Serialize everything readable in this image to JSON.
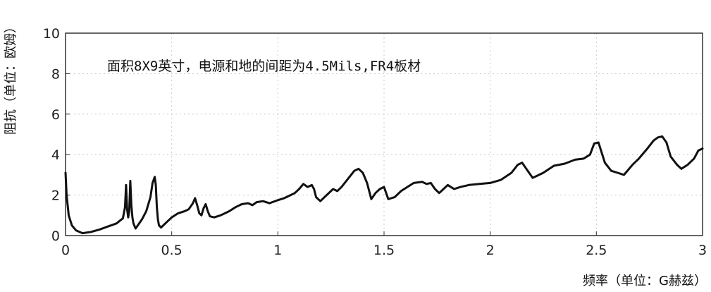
{
  "chart_data": {
    "type": "line",
    "title": "",
    "annotation": "面积8X9英寸，电源和地的间距为4.5Mils,FR4板材",
    "xlabel": "频率（单位：G赫兹）",
    "ylabel": "阻抗（单位：欧姆）",
    "xlim": [
      0,
      3
    ],
    "ylim": [
      0,
      10
    ],
    "x_ticks": [
      "0",
      "0.5",
      "1",
      "1.5",
      "2",
      "2.5",
      "3"
    ],
    "y_ticks": [
      "0",
      "2",
      "4",
      "6",
      "8",
      "10"
    ],
    "grid": true,
    "series": [
      {
        "x": [
          0,
          0.005,
          0.015,
          0.03,
          0.05,
          0.08,
          0.12,
          0.16,
          0.2,
          0.24,
          0.27,
          0.28,
          0.285,
          0.29,
          0.295,
          0.3,
          0.305,
          0.31,
          0.315,
          0.32,
          0.33,
          0.34,
          0.36,
          0.38,
          0.4,
          0.41,
          0.42,
          0.425,
          0.43,
          0.435,
          0.44,
          0.45,
          0.48,
          0.5,
          0.53,
          0.56,
          0.58,
          0.6,
          0.61,
          0.62,
          0.63,
          0.64,
          0.65,
          0.66,
          0.67,
          0.68,
          0.7,
          0.73,
          0.77,
          0.8,
          0.83,
          0.86,
          0.88,
          0.9,
          0.93,
          0.96,
          1.0,
          1.03,
          1.06,
          1.08,
          1.1,
          1.12,
          1.14,
          1.16,
          1.17,
          1.18,
          1.2,
          1.23,
          1.26,
          1.28,
          1.3,
          1.33,
          1.36,
          1.38,
          1.4,
          1.42,
          1.44,
          1.46,
          1.48,
          1.5,
          1.52,
          1.55,
          1.58,
          1.61,
          1.64,
          1.68,
          1.7,
          1.72,
          1.74,
          1.76,
          1.78,
          1.8,
          1.83,
          1.86,
          1.9,
          1.95,
          2.0,
          2.05,
          2.1,
          2.13,
          2.15,
          2.17,
          2.2,
          2.25,
          2.3,
          2.35,
          2.4,
          2.44,
          2.47,
          2.49,
          2.51,
          2.54,
          2.57,
          2.6,
          2.63,
          2.67,
          2.7,
          2.74,
          2.77,
          2.79,
          2.81,
          2.83,
          2.85,
          2.88,
          2.9,
          2.93,
          2.96,
          2.98,
          3.0
        ],
        "y": [
          3.1,
          2.0,
          1.0,
          0.5,
          0.25,
          0.12,
          0.18,
          0.3,
          0.45,
          0.6,
          0.85,
          1.4,
          2.5,
          1.3,
          0.9,
          1.2,
          2.7,
          1.5,
          0.9,
          0.6,
          0.35,
          0.5,
          0.8,
          1.2,
          1.9,
          2.6,
          2.9,
          2.5,
          1.4,
          0.8,
          0.5,
          0.4,
          0.7,
          0.9,
          1.1,
          1.2,
          1.3,
          1.6,
          1.85,
          1.5,
          1.1,
          1.0,
          1.35,
          1.55,
          1.2,
          0.95,
          0.9,
          1.0,
          1.2,
          1.4,
          1.55,
          1.6,
          1.5,
          1.65,
          1.7,
          1.6,
          1.75,
          1.85,
          2.0,
          2.1,
          2.3,
          2.55,
          2.4,
          2.5,
          2.3,
          1.9,
          1.7,
          2.0,
          2.3,
          2.2,
          2.4,
          2.8,
          3.2,
          3.3,
          3.1,
          2.6,
          1.8,
          2.1,
          2.3,
          2.4,
          1.8,
          1.9,
          2.2,
          2.4,
          2.6,
          2.65,
          2.55,
          2.6,
          2.3,
          2.1,
          2.3,
          2.5,
          2.3,
          2.4,
          2.5,
          2.55,
          2.6,
          2.75,
          3.1,
          3.5,
          3.6,
          3.3,
          2.85,
          3.1,
          3.45,
          3.55,
          3.75,
          3.8,
          4.0,
          4.55,
          4.6,
          3.6,
          3.2,
          3.1,
          3.0,
          3.5,
          3.8,
          4.3,
          4.7,
          4.85,
          4.9,
          4.6,
          3.9,
          3.5,
          3.3,
          3.5,
          3.8,
          4.2,
          4.3
        ]
      }
    ]
  }
}
